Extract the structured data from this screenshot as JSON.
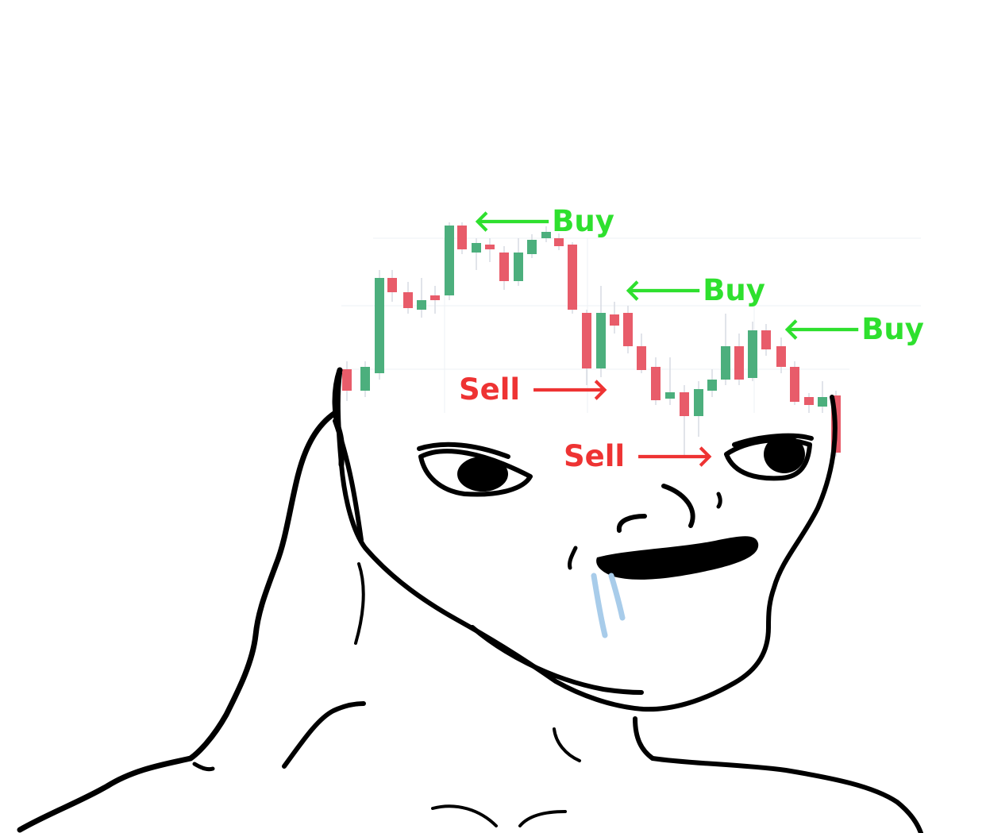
{
  "annotations": {
    "buy_1": "Buy",
    "buy_2": "Buy",
    "buy_3": "Buy",
    "sell_1": "Sell",
    "sell_2": "Sell"
  },
  "colors": {
    "buy_text": "#2ee02e",
    "sell_text": "#ee3333",
    "candle_up": "#4caf7d",
    "candle_down": "#e85c6a",
    "outline": "#000000",
    "drool": "#a8ccea"
  }
}
